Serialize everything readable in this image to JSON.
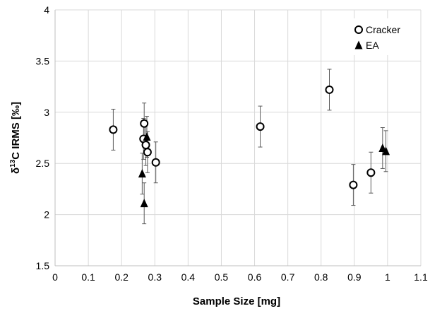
{
  "chart_data": {
    "type": "scatter",
    "xlabel": "Sample Size [mg]",
    "ylabel": {
      "prefix": "δ",
      "superscript": "13",
      "suffix": "C IRMS [‰]"
    },
    "xlim": [
      0,
      1.1
    ],
    "ylim": [
      1.5,
      4
    ],
    "x_ticks": [
      "0",
      "0.1",
      "0.2",
      "0.3",
      "0.4",
      "0.5",
      "0.6",
      "0.7",
      "0.8",
      "0.9",
      "1",
      "1.1"
    ],
    "y_ticks": [
      "1.5",
      "2",
      "2.5",
      "3",
      "3.5",
      "4"
    ],
    "grid": true,
    "legend_position": "top-right",
    "error_bar": 0.2,
    "series": [
      {
        "name": "Cracker",
        "marker": "open-circle",
        "points": [
          {
            "x": 0.175,
            "y": 2.83
          },
          {
            "x": 0.268,
            "y": 2.89
          },
          {
            "x": 0.266,
            "y": 2.74
          },
          {
            "x": 0.273,
            "y": 2.68
          },
          {
            "x": 0.278,
            "y": 2.61
          },
          {
            "x": 0.303,
            "y": 2.51
          },
          {
            "x": 0.617,
            "y": 2.86
          },
          {
            "x": 0.825,
            "y": 3.22
          },
          {
            "x": 0.897,
            "y": 2.29
          },
          {
            "x": 0.95,
            "y": 2.41
          }
        ]
      },
      {
        "name": "EA",
        "marker": "filled-triangle",
        "points": [
          {
            "x": 0.262,
            "y": 2.4
          },
          {
            "x": 0.268,
            "y": 2.11
          },
          {
            "x": 0.276,
            "y": 2.76
          },
          {
            "x": 0.985,
            "y": 2.65
          },
          {
            "x": 0.995,
            "y": 2.62
          }
        ]
      }
    ]
  }
}
